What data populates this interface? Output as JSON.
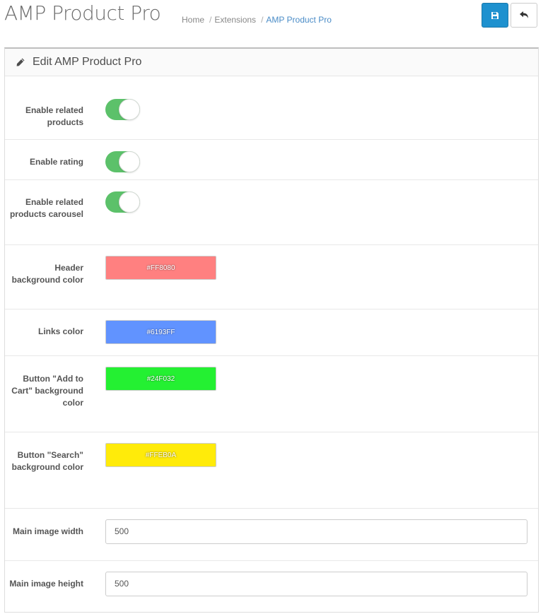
{
  "header": {
    "title": "AMP Product Pro",
    "breadcrumb": [
      "Home",
      "Extensions",
      "AMP Product Pro"
    ],
    "save_icon": "floppy-disk-icon",
    "back_icon": "reply-arrow-icon"
  },
  "panel": {
    "title": "Edit AMP Product Pro",
    "title_icon": "pencil-icon"
  },
  "form": {
    "enable_related": {
      "label": "Enable related products",
      "enabled": true
    },
    "enable_rating": {
      "label": "Enable rating",
      "enabled": true
    },
    "enable_carousel": {
      "label": "Enable related products carousel",
      "enabled": true
    },
    "header_bg": {
      "label": "Header background color",
      "value": "#FF8080"
    },
    "links_color": {
      "label": "Links color",
      "value": "#6193FF"
    },
    "cart_bg": {
      "label": "Button \"Add to Cart\" background color",
      "value": "#24F032"
    },
    "search_bg": {
      "label": "Button \"Search\" background color",
      "value": "#FFEB0A"
    },
    "main_w": {
      "label": "Main image width",
      "value": "500"
    },
    "main_h": {
      "label": "Main image height",
      "value": "500"
    }
  }
}
